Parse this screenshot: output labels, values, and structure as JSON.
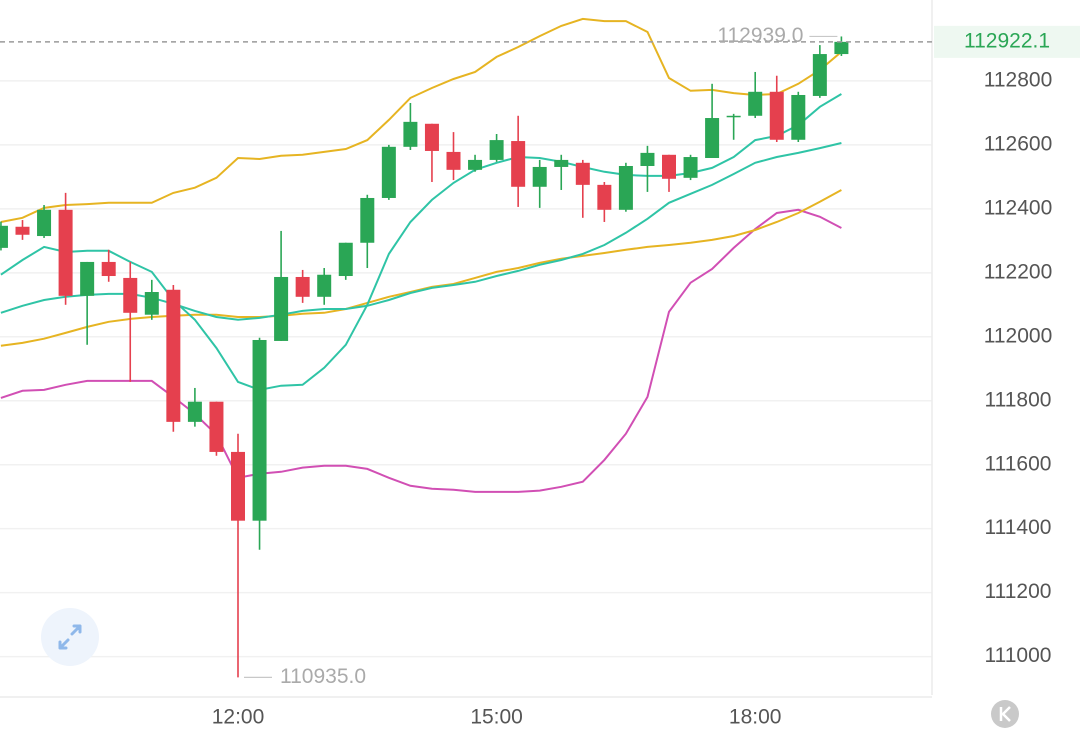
{
  "chart_data": {
    "type": "candlestick",
    "categories": [
      null,
      null,
      null,
      null,
      null,
      null,
      null,
      null,
      null,
      null,
      null,
      "12:00",
      null,
      null,
      null,
      null,
      null,
      null,
      null,
      null,
      null,
      null,
      null,
      "15:00",
      null,
      null,
      null,
      null,
      null,
      null,
      null,
      null,
      null,
      null,
      null,
      "18:00",
      null,
      null,
      null,
      null
    ],
    "open": [
      112278,
      112344,
      112315,
      112397,
      112128,
      112234,
      112184,
      112069,
      112147,
      111734,
      111797,
      111640,
      111425,
      111987,
      112187,
      112125,
      112190,
      112294,
      112434,
      112594,
      112666,
      112578,
      112522,
      112553,
      112612,
      112469,
      112531,
      112544,
      112475,
      112397,
      112534,
      112569,
      112497,
      112559,
      112687,
      112691,
      112766,
      112616,
      112753,
      112884
    ],
    "high": [
      112360,
      112365,
      112412,
      112450,
      112234,
      112272,
      112234,
      112178,
      112162,
      111840,
      111797,
      111697,
      111997,
      112331,
      112209,
      112215,
      112294,
      112444,
      112600,
      112731,
      112666,
      112640,
      112569,
      112634,
      112691,
      112553,
      112569,
      112553,
      112484,
      112544,
      112597,
      112569,
      112569,
      112791,
      112697,
      112828,
      112816,
      112766,
      112912,
      112939
    ],
    "low": [
      112270,
      112303,
      112309,
      112100,
      111975,
      112172,
      111859,
      112053,
      111703,
      111719,
      111628,
      110935,
      111334,
      111987,
      112106,
      112100,
      112178,
      112215,
      112428,
      112584,
      112484,
      112490,
      112516,
      112547,
      112406,
      112403,
      112459,
      112372,
      112359,
      112391,
      112453,
      112453,
      112490,
      112559,
      112616,
      112684,
      112609,
      112609,
      112747,
      112878
    ],
    "close": [
      112347,
      112319,
      112397,
      112128,
      112234,
      112190,
      112075,
      112140,
      111734,
      111797,
      111640,
      111425,
      111990,
      112187,
      112125,
      112194,
      112294,
      112434,
      112594,
      112672,
      112581,
      112522,
      112553,
      112615,
      112469,
      112531,
      112553,
      112475,
      112397,
      112534,
      112575,
      112494,
      112562,
      112684,
      112691,
      112766,
      112616,
      112756,
      112884,
      112922.1
    ],
    "up_color": "#2aa655",
    "down_color": "#e5404e",
    "lines": [
      {
        "color": "#e6b422",
        "values": [
          112359,
          112372,
          112403,
          112412,
          112415,
          112419,
          112419,
          112419,
          112450,
          112466,
          112497,
          112559,
          112556,
          112566,
          112569,
          112578,
          112587,
          112615,
          112678,
          112747,
          112778,
          112806,
          112828,
          112875,
          112906,
          112940,
          112972,
          112994,
          112987,
          112987,
          112953,
          112809,
          112769,
          112772,
          112762,
          112756,
          112759,
          112791,
          112834,
          112891
        ]
      },
      {
        "color": "#d14fb4",
        "values": [
          111809,
          111831,
          111834,
          111850,
          111862,
          111862,
          111862,
          111862,
          111812,
          111759,
          111694,
          111559,
          111572,
          111578,
          111591,
          111597,
          111597,
          111587,
          111559,
          111534,
          111525,
          111522,
          111515,
          111515,
          111515,
          111519,
          111531,
          111547,
          111615,
          111697,
          111812,
          112078,
          112169,
          112212,
          112278,
          112337,
          112387,
          112397,
          112375,
          112340
        ]
      },
      {
        "color": "#e6b422",
        "values": [
          111972,
          111981,
          111994,
          112012,
          112031,
          112047,
          112056,
          112062,
          112066,
          112069,
          112069,
          112062,
          112062,
          112066,
          112072,
          112075,
          112087,
          112106,
          112125,
          112140,
          112156,
          112165,
          112184,
          112203,
          112215,
          112231,
          112244,
          112253,
          112262,
          112272,
          112281,
          112287,
          112294,
          112303,
          112315,
          112334,
          112359,
          112387,
          112422,
          112459
        ]
      },
      {
        "color": "#2fc4a6",
        "values": [
          112194,
          112240,
          112281,
          112265,
          112269,
          112269,
          112234,
          112203,
          112115,
          112053,
          111965,
          111859,
          111834,
          111847,
          111850,
          111903,
          111975,
          112100,
          112259,
          112359,
          112428,
          112481,
          112522,
          112544,
          112562,
          112559,
          112547,
          112531,
          112516,
          112506,
          112503,
          112503,
          112512,
          112528,
          112562,
          112615,
          112628,
          112662,
          112719,
          112759
        ]
      },
      {
        "color": "#2fc4a6",
        "values": [
          112075,
          112097,
          112115,
          112125,
          112131,
          112134,
          112134,
          112122,
          112103,
          112081,
          112062,
          112053,
          112059,
          112069,
          112081,
          112087,
          112087,
          112097,
          112115,
          112137,
          112153,
          112162,
          112172,
          112190,
          112206,
          112225,
          112240,
          112259,
          112287,
          112325,
          112369,
          112419,
          112447,
          112475,
          112509,
          112544,
          112562,
          112575,
          112590,
          112606
        ]
      }
    ],
    "ylim": [
      110880,
      113053
    ],
    "yticks": [
      111000,
      111200,
      111400,
      111600,
      111800,
      112000,
      112200,
      112400,
      112600,
      112800
    ],
    "grid": true,
    "last_price": 112922.1,
    "last_price_color": "#2aa655",
    "annotations": [
      {
        "index": 39,
        "value": 112939,
        "label": "112939.0"
      },
      {
        "index": 11,
        "value": 110935,
        "label": "110935.0"
      }
    ]
  }
}
